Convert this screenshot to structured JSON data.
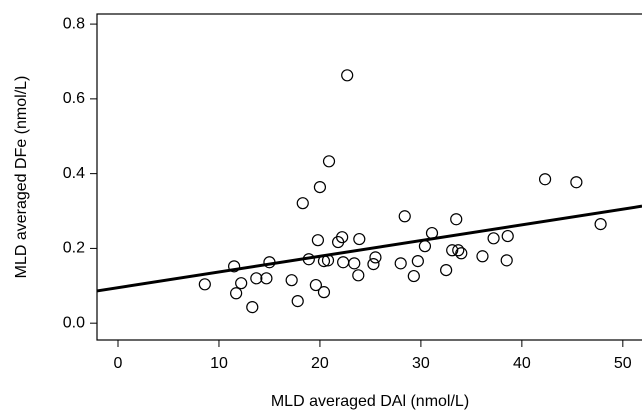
{
  "chart_data": {
    "type": "scatter",
    "x_label": "MLD averaged DAl (nmol/L)",
    "y_label": "MLD averaged DFe (nmol/L)",
    "xlim": [
      -2.08,
      51.9
    ],
    "ylim": [
      -0.045,
      0.827
    ],
    "xticks": [
      0,
      10,
      20,
      30,
      40,
      50
    ],
    "yticks": [
      {
        "value": 0,
        "label": "0.0"
      },
      0.2,
      0.4,
      0.6,
      0.8
    ],
    "color": "#000000",
    "regression": {
      "intercept": 0.095,
      "slope": 0.0042
    },
    "x": [
      8.6,
      11.5,
      11.7,
      12.2,
      13.3,
      13.7,
      14.7,
      15.0,
      17.2,
      17.8,
      18.3,
      18.9,
      19.6,
      19.8,
      20.0,
      20.4,
      20.4,
      20.8,
      20.9,
      21.8,
      22.2,
      22.3,
      22.7,
      23.4,
      23.8,
      23.9,
      25.3,
      25.5,
      28.0,
      28.4,
      29.3,
      29.7,
      30.4,
      31.1,
      32.5,
      33.1,
      33.5,
      33.7,
      34.0,
      36.1,
      37.2,
      38.5,
      38.6,
      42.3,
      45.4,
      47.8
    ],
    "values": [
      0.104,
      0.152,
      0.08,
      0.107,
      0.043,
      0.12,
      0.12,
      0.163,
      0.115,
      0.059,
      0.321,
      0.171,
      0.102,
      0.222,
      0.364,
      0.083,
      0.166,
      0.168,
      0.433,
      0.217,
      0.23,
      0.163,
      0.663,
      0.16,
      0.128,
      0.225,
      0.158,
      0.176,
      0.16,
      0.286,
      0.126,
      0.166,
      0.206,
      0.241,
      0.142,
      0.195,
      0.278,
      0.195,
      0.187,
      0.179,
      0.227,
      0.168,
      0.233,
      0.385,
      0.377,
      0.265
    ]
  }
}
